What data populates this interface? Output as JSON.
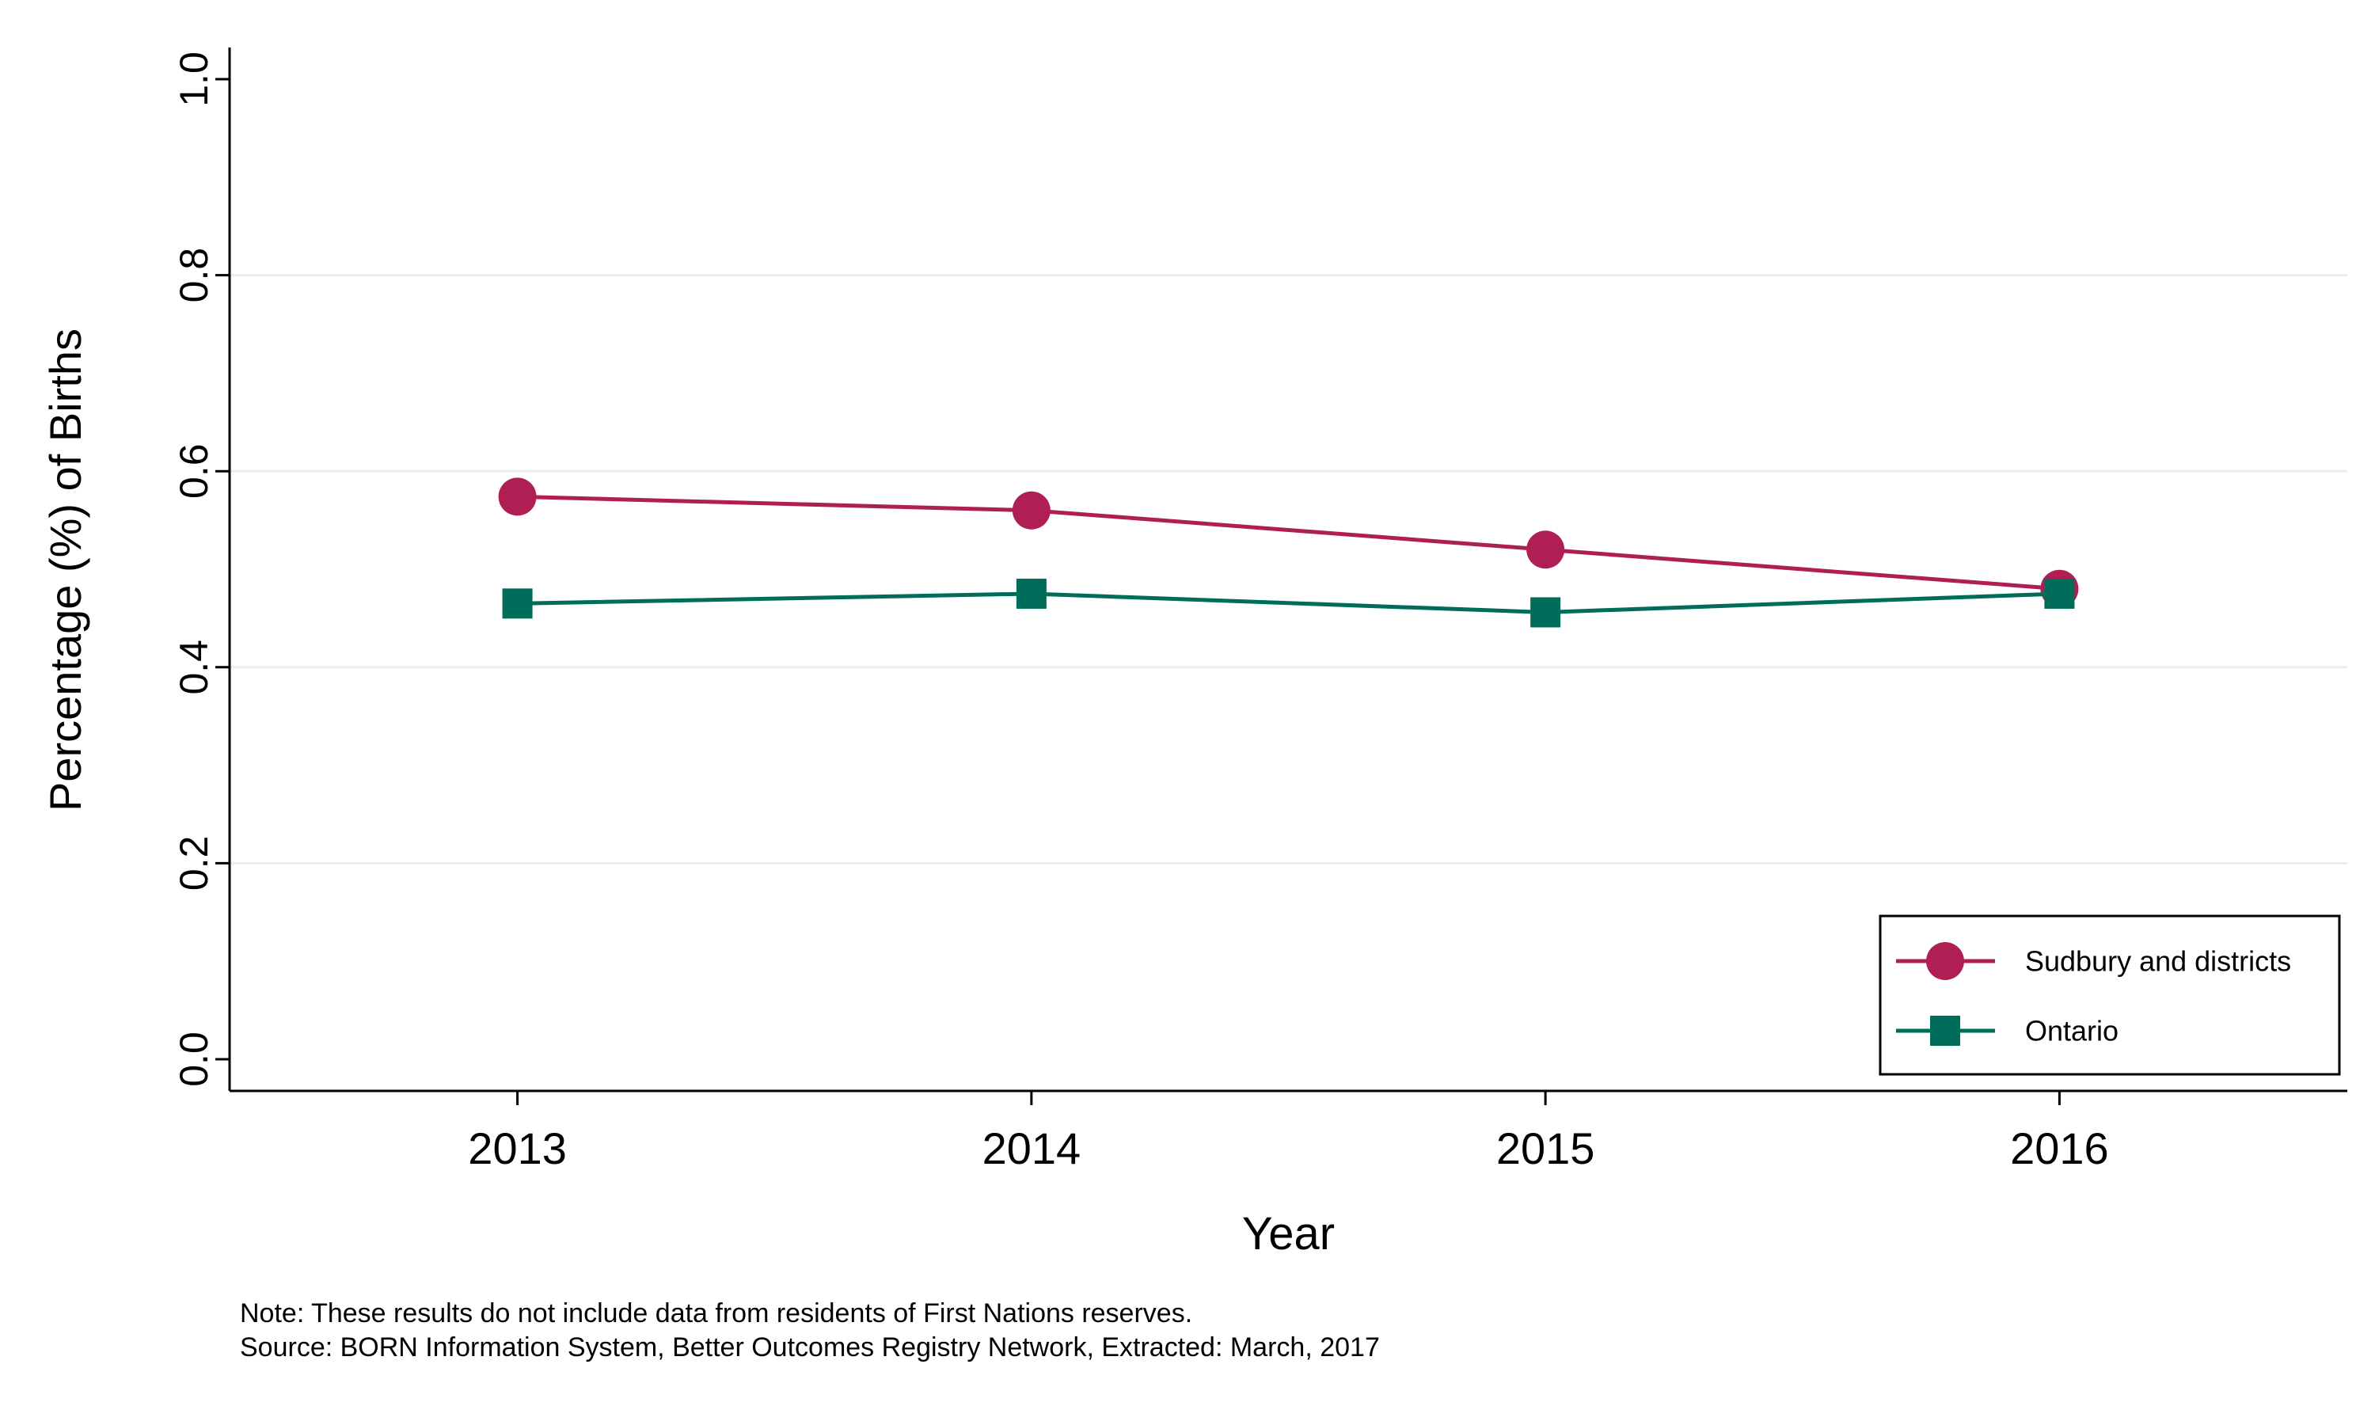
{
  "chart_data": {
    "type": "line",
    "title": "",
    "xlabel": "Year",
    "ylabel": "Percentage (%) of Births",
    "categories": [
      "2013",
      "2014",
      "2015",
      "2016"
    ],
    "x": [
      2013,
      2014,
      2015,
      2016
    ],
    "xlim": [
      2012.44,
      2016.56
    ],
    "ylim": [
      0.0,
      1.0
    ],
    "yticks": [
      "0.0",
      "0.2",
      "0.4",
      "0.6",
      "0.8",
      "1.0"
    ],
    "grid": true,
    "legend_position": "bottom-right",
    "series": [
      {
        "name": "Sudbury and districts",
        "values": [
          0.574,
          0.56,
          0.52,
          0.48
        ],
        "color": "#b01f53",
        "marker": "circle"
      },
      {
        "name": "Ontario",
        "values": [
          0.465,
          0.475,
          0.456,
          0.475
        ],
        "color": "#006d5b",
        "marker": "square"
      }
    ]
  },
  "footnotes": {
    "note": "Note: These results do not include data from residents of First Nations reserves.",
    "source": "Source: BORN Information System, Better Outcomes Registry Network, Extracted: March, 2017"
  },
  "colors": {
    "axis": "#000000",
    "grid": "#e6efee",
    "background": "#ffffff"
  }
}
